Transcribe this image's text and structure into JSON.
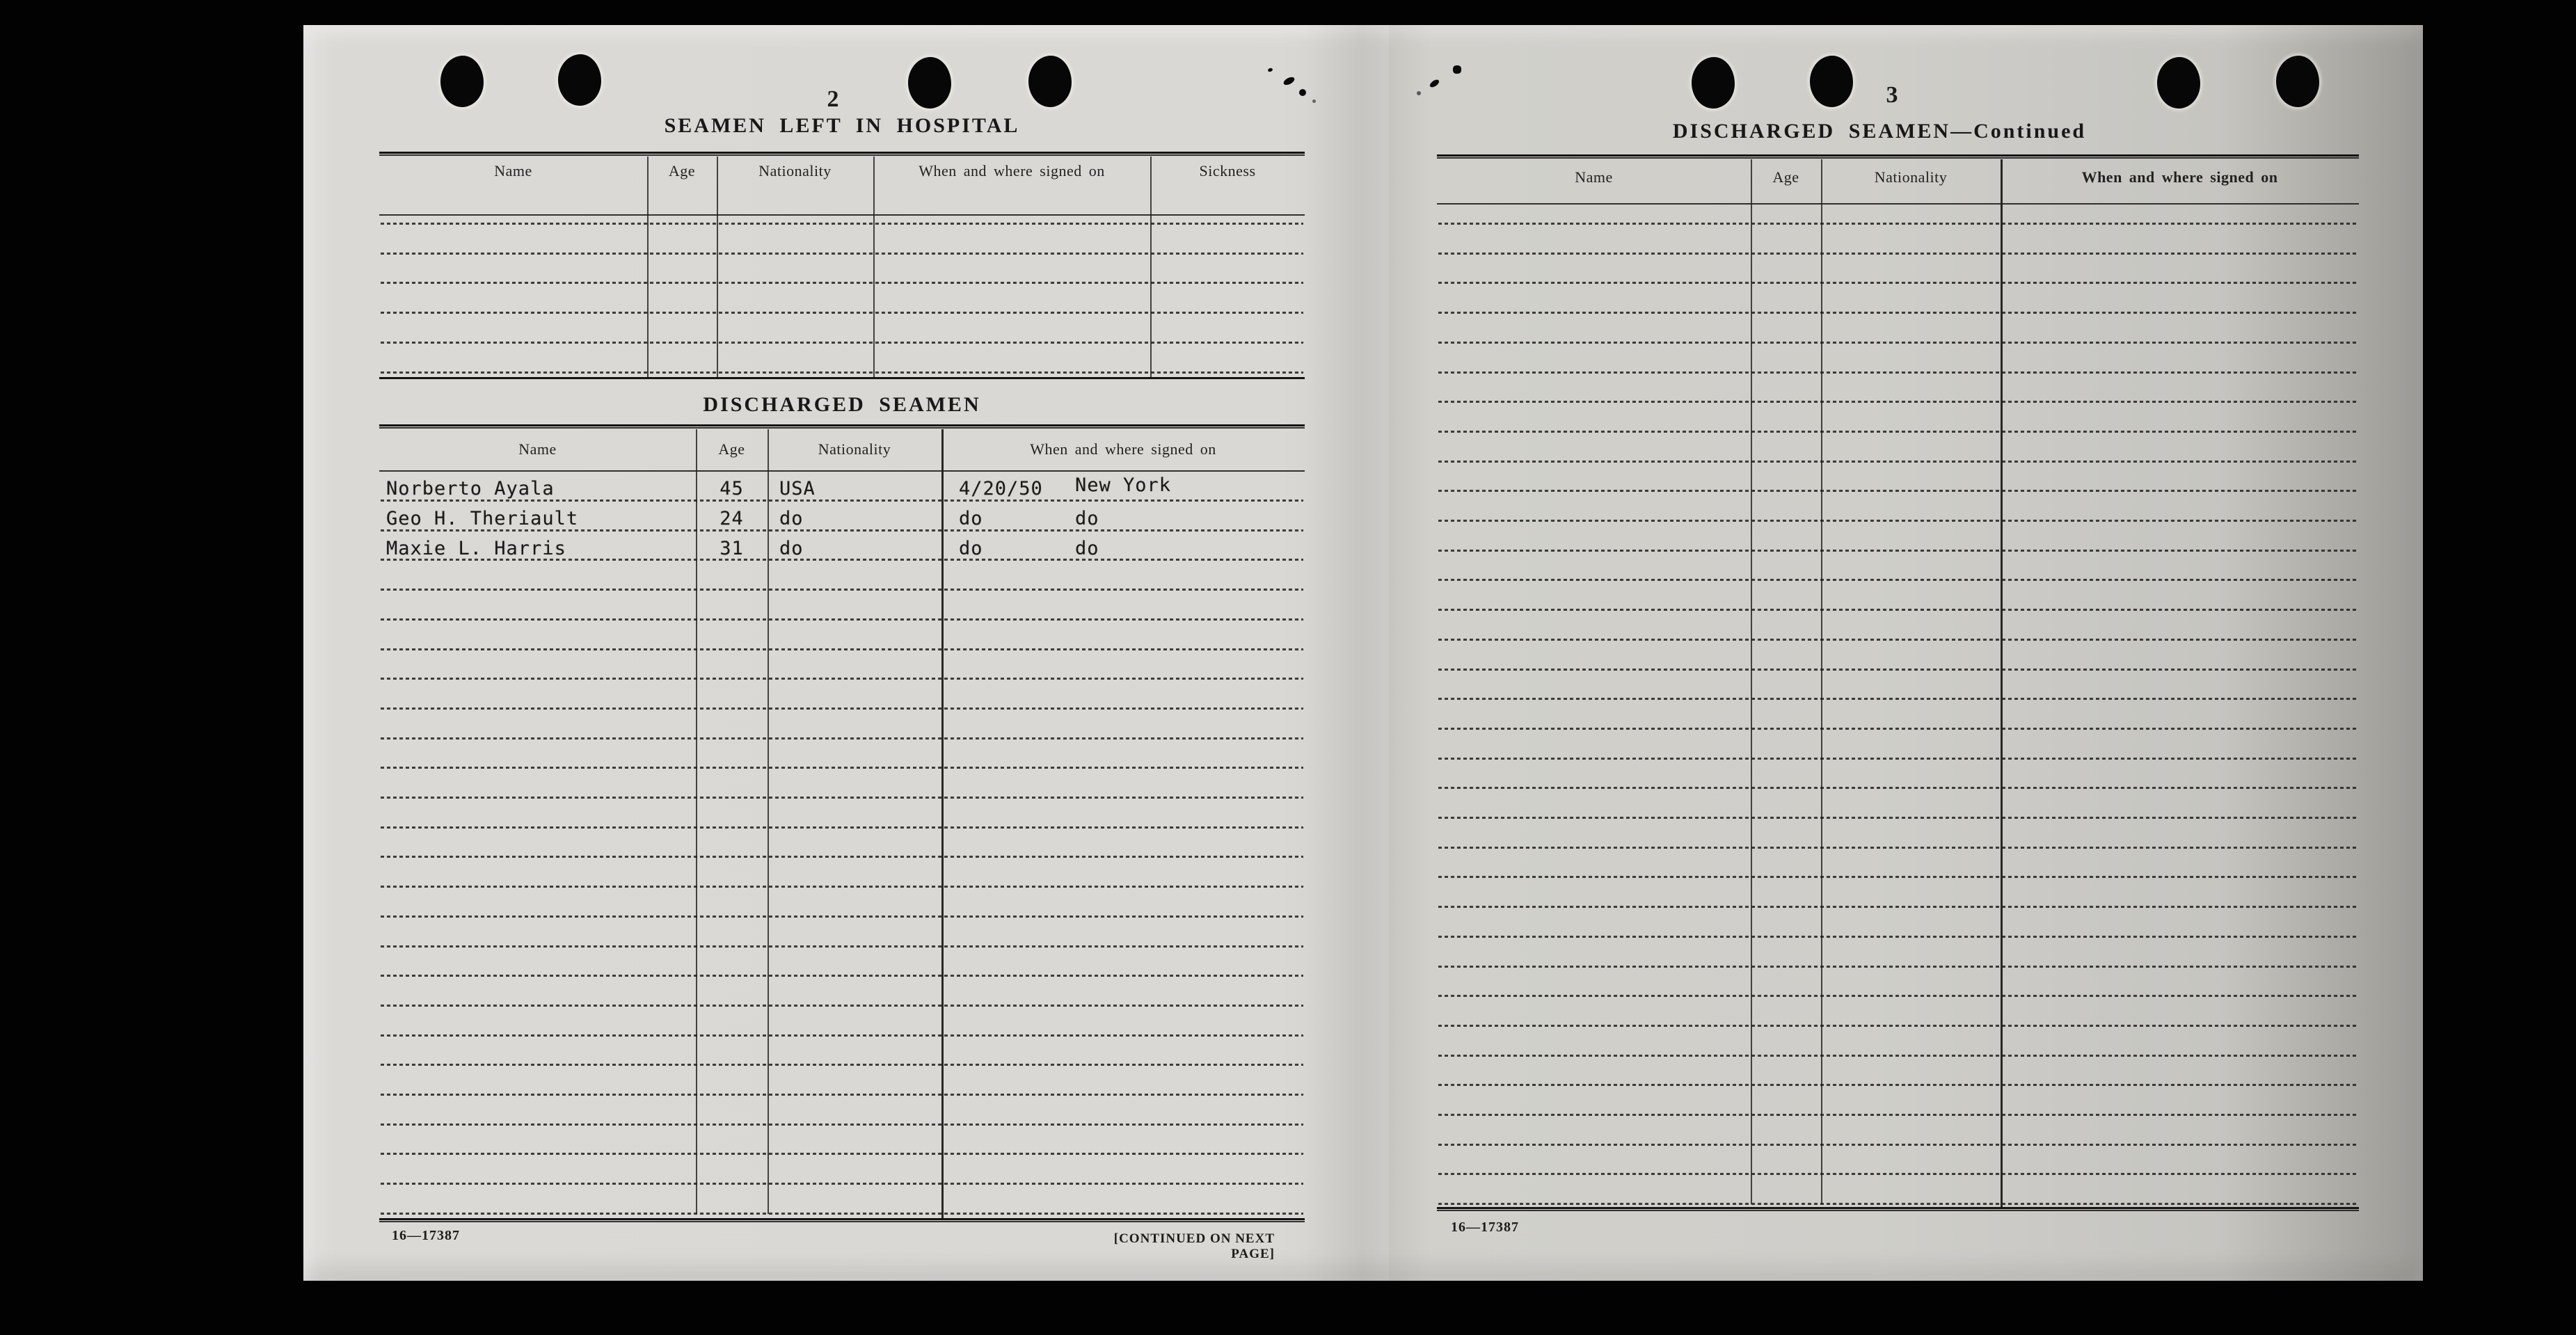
{
  "document": {
    "left_page": {
      "page_number": "2",
      "hospital_table": {
        "title": "SEAMEN LEFT IN HOSPITAL",
        "columns": [
          "Name",
          "Age",
          "Nationality",
          "When and where signed on",
          "Sickness"
        ],
        "ruled_line_count": 6
      },
      "discharged_table": {
        "title": "DISCHARGED SEAMEN",
        "columns": [
          "Name",
          "Age",
          "Nationality",
          "When and where signed on"
        ],
        "rows": [
          {
            "name": "Norberto Ayala",
            "age": "45",
            "nationality": "USA",
            "date": "4/20/50",
            "place": "New York"
          },
          {
            "name": "Geo H. Theriault",
            "age": "24",
            "nationality": "do",
            "date": "do",
            "place": "do"
          },
          {
            "name": "Maxie L. Harris",
            "age": "31",
            "nationality": "do",
            "date": "do",
            "place": "do"
          }
        ],
        "ruled_line_count": 25
      },
      "footer": {
        "form_number": "16—17387",
        "continuation_note": "[CONTINUED ON NEXT PAGE]"
      }
    },
    "right_page": {
      "page_number": "3",
      "discharged_continued_table": {
        "title": "DISCHARGED SEAMEN—Continued",
        "columns": [
          "Name",
          "Age",
          "Nationality",
          "When and where signed on"
        ],
        "ruled_line_count": 34
      },
      "footer": {
        "form_number": "16—17387"
      }
    }
  }
}
